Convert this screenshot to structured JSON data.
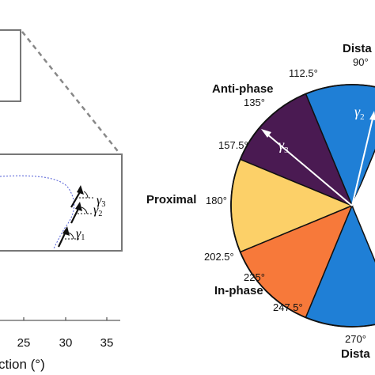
{
  "left_panel": {
    "x_axis": {
      "ticks": [
        "25",
        "30",
        "35"
      ],
      "label_fragment": "ction (°)"
    },
    "angle_markers": [
      {
        "symbol": "γ",
        "subscript": "3"
      },
      {
        "symbol": "γ",
        "subscript": "2"
      },
      {
        "symbol": "γ",
        "subscript": "1"
      }
    ]
  },
  "wheel": {
    "sectors": [
      {
        "name": "Distal",
        "start": 67.5,
        "end": 112.5,
        "color": "#1f7fd6"
      },
      {
        "name": "Anti-phase",
        "start": 112.5,
        "end": 157.5,
        "color": "#4a1a52"
      },
      {
        "name": "Proximal",
        "start": 157.5,
        "end": 202.5,
        "color": "#fcd068"
      },
      {
        "name": "In-phase",
        "start": 202.5,
        "end": 247.5,
        "color": "#f7793a"
      },
      {
        "name": "Distal",
        "start": 247.5,
        "end": 292.5,
        "color": "#1f7fd6"
      }
    ],
    "angle_labels": [
      "90°",
      "112.5°",
      "135°",
      "157.5°",
      "180°",
      "202.5°",
      "225°",
      "247.5°",
      "270°"
    ],
    "region_labels": {
      "distal_top": "Dista",
      "anti_phase": "Anti-phase",
      "proximal": "Proximal",
      "in_phase": "In-phase",
      "distal_bottom": "Dista"
    },
    "vectors": [
      {
        "symbol": "γ",
        "subscript": "3",
        "angle": 140
      },
      {
        "symbol": "γ",
        "subscript": "2",
        "angle": 78
      }
    ]
  }
}
